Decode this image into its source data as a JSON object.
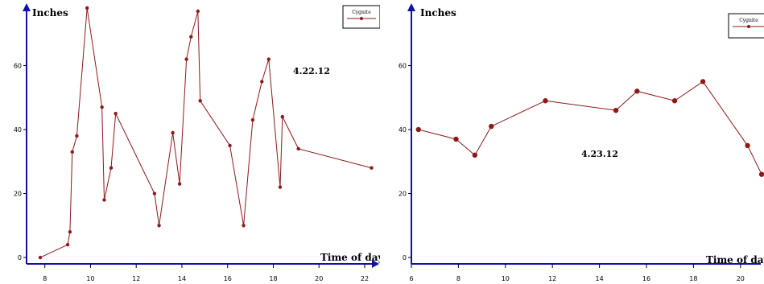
{
  "chart_data": [
    {
      "type": "line",
      "title": "",
      "ylabel": "Inches",
      "xlabel": "Time of day",
      "annotation": "4.22.12",
      "legend": {
        "label": "Cygnite",
        "position": "top-right"
      },
      "xlim": [
        7.2,
        22.6
      ],
      "ylim": [
        -2,
        79
      ],
      "xticks": [
        8,
        10,
        12,
        14,
        16,
        18,
        20,
        22
      ],
      "yticks": [
        0,
        20,
        40,
        60
      ],
      "grid": false,
      "series": [
        {
          "name": "Cygnite",
          "color": "#8b1a1a",
          "x": [
            7.8,
            9.0,
            9.1,
            9.2,
            9.4,
            9.85,
            10.5,
            10.6,
            10.9,
            11.1,
            12.8,
            13.0,
            13.6,
            13.9,
            14.2,
            14.4,
            14.7,
            14.8,
            16.1,
            16.7,
            17.1,
            17.5,
            17.8,
            18.3,
            18.4,
            19.1,
            22.3
          ],
          "y": [
            0,
            4,
            8,
            33,
            38,
            78,
            47,
            18,
            28,
            45,
            20,
            10,
            39,
            23,
            62,
            69,
            77,
            49,
            35,
            10,
            43,
            55,
            62,
            22,
            44,
            34,
            28
          ]
        }
      ]
    },
    {
      "type": "line",
      "title": "",
      "ylabel": "Inches",
      "xlabel": "Time of day",
      "annotation": "4.23.12",
      "legend": {
        "label": "Cygnite",
        "position": "top-right"
      },
      "xlim": [
        6,
        21
      ],
      "ylim": [
        -2,
        79
      ],
      "xticks": [
        6,
        8,
        10,
        12,
        14,
        16,
        18,
        20
      ],
      "yticks": [
        0,
        20,
        40,
        60
      ],
      "grid": false,
      "series": [
        {
          "name": "Cygnite",
          "color": "#8b1a1a",
          "x": [
            6.3,
            7.9,
            8.7,
            9.4,
            11.7,
            14.7,
            15.6,
            17.2,
            18.4,
            20.3,
            20.9
          ],
          "y": [
            40,
            37,
            32,
            41,
            49,
            46,
            52,
            49,
            55,
            35,
            26
          ]
        }
      ]
    }
  ]
}
